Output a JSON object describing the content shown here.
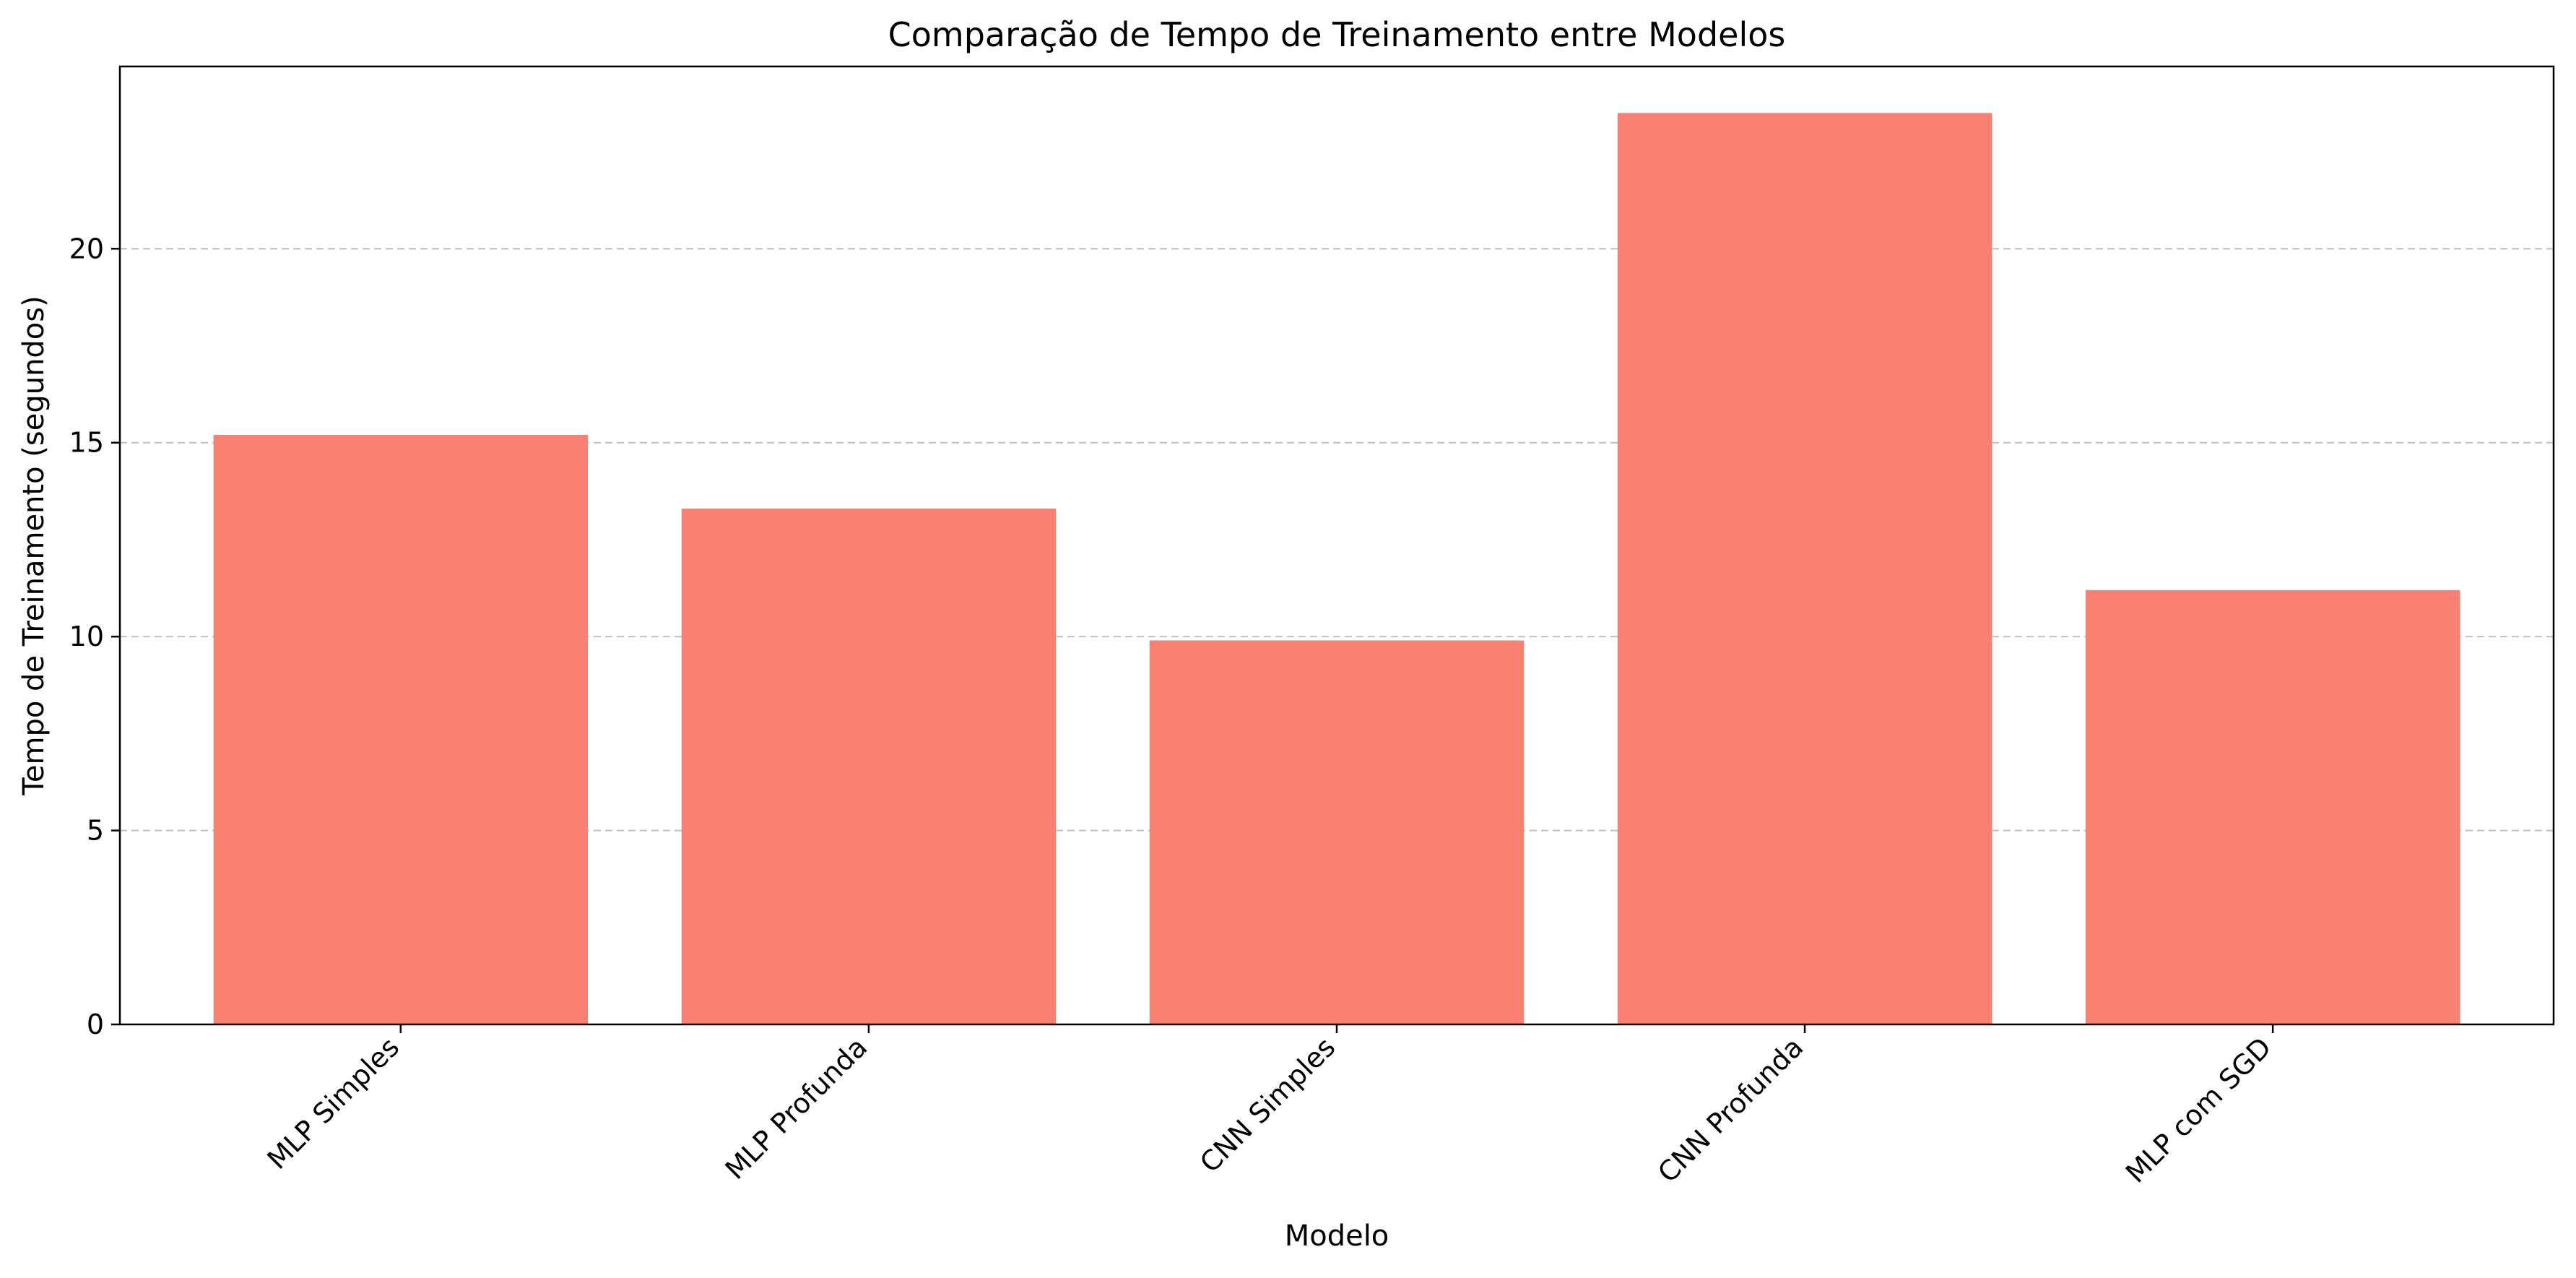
{
  "chart_data": {
    "type": "bar",
    "title": "Comparação de Tempo de Treinamento entre Modelos",
    "xlabel": "Modelo",
    "ylabel": "Tempo de Treinamento (segundos)",
    "categories": [
      "MLP Simples",
      "MLP Profunda",
      "CNN Simples",
      "CNN Profunda",
      "MLP com SGD"
    ],
    "values": [
      15.2,
      13.3,
      9.9,
      23.5,
      11.2
    ],
    "ylim": [
      0,
      24.7
    ],
    "yticks": [
      0,
      5,
      10,
      15,
      20
    ],
    "grid": "horizontal dashed",
    "bar_color": "#fa8072",
    "grid_color": "#c0c0c0",
    "axis_color": "#000000"
  }
}
